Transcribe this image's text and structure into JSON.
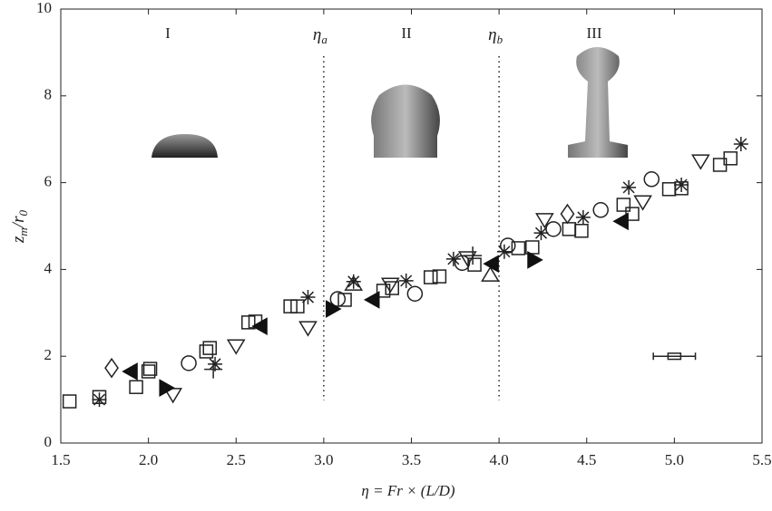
{
  "chart_data": {
    "type": "scatter",
    "x_label": "η = Fr × (L/D)",
    "y_label": [
      "z",
      "m",
      "/r",
      "0"
    ],
    "xlim": [
      1.5,
      5.5
    ],
    "xticks": [
      1.5,
      {
        "value": 2,
        "label": "2.0"
      },
      2.5,
      {
        "value": 3,
        "label": "3.0"
      },
      3.5,
      {
        "value": 4,
        "label": "4.0"
      },
      4.5,
      {
        "value": 5,
        "label": "5.0"
      },
      5.5
    ],
    "ylim": [
      0,
      10
    ],
    "yticks": [
      0,
      2,
      4,
      6,
      8,
      10
    ],
    "regions": [
      "I",
      "II",
      "III"
    ],
    "vlines": [
      {
        "value": 3,
        "label": "η",
        "sub": "a"
      },
      {
        "value": 4,
        "label": "η",
        "sub": "b"
      }
    ],
    "errorbar": {
      "x": 5.0,
      "y": 2.0,
      "xerr": 0.12,
      "yerr": 0.07
    },
    "series": [
      {
        "marker": "square",
        "color": "#222",
        "x": [
          1.55,
          1.72,
          1.93,
          2.0,
          2.01,
          2.33,
          2.35,
          2.57,
          2.61,
          2.81,
          2.85,
          3.12,
          3.34,
          3.39,
          3.61,
          3.66,
          3.86,
          4.11,
          4.19,
          4.4,
          4.47,
          4.71,
          4.76,
          4.97,
          5.04,
          5.26,
          5.32
        ],
        "values": [
          0.96,
          1.06,
          1.29,
          1.65,
          1.71,
          2.11,
          2.19,
          2.78,
          2.8,
          3.15,
          3.15,
          3.3,
          3.51,
          3.57,
          3.82,
          3.84,
          4.11,
          4.49,
          4.51,
          4.93,
          4.89,
          5.49,
          5.28,
          5.85,
          5.87,
          6.41,
          6.56
        ]
      },
      {
        "marker": "circle",
        "color": "#222",
        "x": [
          2.23,
          3.08,
          3.52,
          3.79,
          4.05,
          4.31,
          4.58,
          4.87
        ],
        "values": [
          1.84,
          3.32,
          3.44,
          4.15,
          4.55,
          4.93,
          5.37,
          6.08
        ]
      },
      {
        "marker": "diamond",
        "color": "#222",
        "x": [
          1.79,
          4.39
        ],
        "values": [
          1.73,
          5.28
        ]
      },
      {
        "marker": "triangle-down",
        "color": "#222",
        "x": [
          2.14,
          2.5,
          2.91,
          3.38,
          3.82,
          4.26,
          4.82,
          5.15
        ],
        "values": [
          1.13,
          2.25,
          2.67,
          3.67,
          4.28,
          5.16,
          5.57,
          6.51
        ]
      },
      {
        "marker": "triangle-up",
        "color": "#222",
        "x": [
          3.17,
          3.95
        ],
        "values": [
          3.65,
          3.86
        ]
      },
      {
        "marker": "asterisk",
        "color": "#222",
        "x": [
          1.72,
          2.38,
          2.91,
          3.17,
          3.47,
          3.74,
          4.03,
          4.24,
          4.48,
          4.74,
          5.04,
          5.38
        ],
        "values": [
          1.0,
          1.82,
          3.36,
          3.72,
          3.74,
          4.24,
          4.41,
          4.84,
          5.2,
          5.89,
          5.95,
          6.89
        ]
      },
      {
        "marker": "plus",
        "color": "#222",
        "x": [
          3.85,
          2.37
        ],
        "values": [
          4.32,
          1.7
        ]
      },
      {
        "marker": "triangle-left",
        "color": "#111",
        "x": [
          1.9,
          2.64,
          3.28,
          3.96,
          4.7
        ],
        "values": [
          1.65,
          2.69,
          3.3,
          4.13,
          5.11
        ]
      },
      {
        "marker": "triangle-right",
        "color": "#111",
        "x": [
          2.1,
          3.05,
          4.2
        ],
        "values": [
          1.27,
          3.09,
          4.22
        ]
      }
    ]
  }
}
